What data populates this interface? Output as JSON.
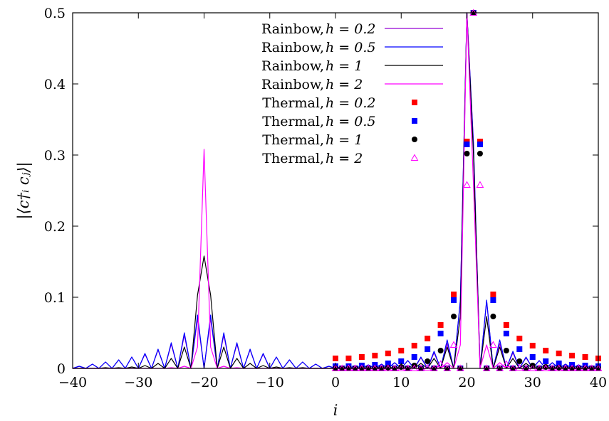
{
  "chart_data": {
    "type": "line",
    "xlabel": "i",
    "ylabel": "|⟨c†ᵢ cⱼ⟩|",
    "xlim": [
      -40,
      40
    ],
    "ylim": [
      0,
      0.5
    ],
    "xticks": [
      -40,
      -30,
      -20,
      -10,
      0,
      10,
      20,
      30,
      40
    ],
    "yticks": [
      0,
      0.1,
      0.2,
      0.3,
      0.4,
      0.5
    ],
    "ytick_labels": [
      "0",
      "0.1",
      "0.2",
      "0.3",
      "0.4",
      "0.5"
    ],
    "grid": false,
    "legend_position": "top-center",
    "x": [
      -40,
      -39,
      -38,
      -37,
      -36,
      -35,
      -34,
      -33,
      -32,
      -31,
      -30,
      -29,
      -28,
      -27,
      -26,
      -25,
      -24,
      -23,
      -22,
      -21,
      -20,
      -19,
      -18,
      -17,
      -16,
      -15,
      -14,
      -13,
      -12,
      -11,
      -10,
      -9,
      -8,
      -7,
      -6,
      -5,
      -4,
      -3,
      -2,
      -1,
      0,
      1,
      2,
      3,
      4,
      5,
      6,
      7,
      8,
      9,
      10,
      11,
      12,
      13,
      14,
      15,
      16,
      17,
      18,
      19,
      20,
      21,
      22,
      23,
      24,
      25,
      26,
      27,
      28,
      29,
      30,
      31,
      32,
      33,
      34,
      35,
      36,
      37,
      38,
      39,
      40
    ],
    "series": [
      {
        "name": "Rainbow, h = 0.2",
        "label_text": "Rainbow, ",
        "label_h": "h = 0.2",
        "kind": "line",
        "color": "#9400d3",
        "values": [
          0,
          0.003,
          0,
          0.006,
          0,
          0.009,
          0,
          0.012,
          0,
          0.016,
          0,
          0.02,
          0,
          0.026,
          0,
          0.034,
          0,
          0.047,
          0,
          0.07,
          0,
          0.07,
          0,
          0.047,
          0,
          0.034,
          0,
          0.026,
          0,
          0.02,
          0,
          0.016,
          0,
          0.012,
          0,
          0.009,
          0,
          0.006,
          0,
          0.003,
          0,
          0.003,
          0,
          0.004,
          0,
          0.005,
          0,
          0.006,
          0,
          0.008,
          0,
          0.011,
          0,
          0.015,
          0,
          0.022,
          0,
          0.035,
          0,
          0.095,
          0.5,
          0.318,
          0,
          0.095,
          0,
          0.035,
          0,
          0.022,
          0,
          0.015,
          0,
          0.011,
          0,
          0.008,
          0,
          0.006,
          0,
          0.005,
          0,
          0.004,
          0
        ]
      },
      {
        "name": "Rainbow, h = 0.5",
        "label_text": "Rainbow, ",
        "label_h": "h = 0.5",
        "kind": "line",
        "color": "#0000ff",
        "values": [
          0,
          0.003,
          0,
          0.006,
          0,
          0.009,
          0,
          0.012,
          0,
          0.016,
          0,
          0.021,
          0,
          0.027,
          0,
          0.036,
          0,
          0.05,
          0,
          0.075,
          0,
          0.075,
          0,
          0.05,
          0,
          0.036,
          0,
          0.027,
          0,
          0.021,
          0,
          0.016,
          0,
          0.012,
          0,
          0.009,
          0,
          0.006,
          0,
          0.003,
          0,
          0.003,
          0,
          0.004,
          0,
          0.005,
          0,
          0.006,
          0,
          0.008,
          0,
          0.011,
          0,
          0.016,
          0,
          0.024,
          0,
          0.04,
          0,
          0.096,
          0.5,
          0.315,
          0,
          0.096,
          0,
          0.04,
          0,
          0.024,
          0,
          0.016,
          0,
          0.011,
          0,
          0.008,
          0,
          0.006,
          0,
          0.005,
          0,
          0.004,
          0
        ]
      },
      {
        "name": "Rainbow, h = 1",
        "label_text": "Rainbow, ",
        "label_h": "h = 1",
        "kind": "line",
        "color": "#000000",
        "values": [
          0,
          0,
          0,
          0,
          0,
          0.001,
          0,
          0.001,
          0,
          0.002,
          0,
          0.004,
          0,
          0.007,
          0,
          0.014,
          0,
          0.03,
          0,
          0.103,
          0.158,
          0.103,
          0,
          0.03,
          0,
          0.014,
          0,
          0.007,
          0,
          0.004,
          0,
          0.002,
          0,
          0.001,
          0,
          0.001,
          0,
          0,
          0,
          0,
          0,
          0.001,
          0,
          0.001,
          0,
          0.001,
          0,
          0.002,
          0,
          0.002,
          0,
          0.004,
          0,
          0.007,
          0,
          0.014,
          0,
          0.03,
          0,
          0.073,
          0.5,
          0.302,
          0,
          0.073,
          0,
          0.03,
          0,
          0.014,
          0,
          0.007,
          0,
          0.004,
          0,
          0.002,
          0,
          0.002,
          0,
          0.001,
          0,
          0.001,
          0
        ]
      },
      {
        "name": "Rainbow, h = 2",
        "label_text": "Rainbow, ",
        "label_h": "h = 2",
        "kind": "line",
        "color": "#ff00ff",
        "values": [
          0,
          0,
          0,
          0,
          0,
          0,
          0,
          0,
          0,
          0,
          0,
          0,
          0,
          0,
          0,
          0.001,
          0,
          0.003,
          0,
          0.03,
          0.308,
          0.03,
          0,
          0.003,
          0,
          0.001,
          0,
          0,
          0,
          0,
          0,
          0,
          0,
          0,
          0,
          0,
          0,
          0,
          0,
          0,
          0,
          0,
          0,
          0,
          0,
          0,
          0,
          0,
          0,
          0,
          0,
          0,
          0,
          0,
          0,
          0.002,
          0,
          0.008,
          0,
          0.033,
          0.5,
          0.258,
          0,
          0.033,
          0,
          0.008,
          0,
          0.002,
          0,
          0,
          0,
          0,
          0,
          0,
          0,
          0,
          0,
          0,
          0,
          0,
          0
        ]
      },
      {
        "name": "Thermal, h = 0.2",
        "label_text": "Thermal, ",
        "label_h": "h = 0.2",
        "kind": "points",
        "marker": "square",
        "color": "#ff0000",
        "x": [
          0,
          1,
          2,
          3,
          4,
          5,
          6,
          7,
          8,
          9,
          10,
          11,
          12,
          13,
          14,
          15,
          16,
          17,
          18,
          19,
          20,
          21,
          22,
          23,
          24,
          25,
          26,
          27,
          28,
          29,
          30,
          31,
          32,
          33,
          34,
          35,
          36,
          37,
          38,
          39,
          40
        ],
        "values": [
          0.014,
          0,
          0.014,
          0,
          0.016,
          0,
          0.018,
          0,
          0.021,
          0,
          0.025,
          0,
          0.032,
          0,
          0.042,
          0,
          0.061,
          0,
          0.104,
          0,
          0.319,
          0.5,
          0.319,
          0,
          0.104,
          0,
          0.061,
          0,
          0.042,
          0,
          0.032,
          0,
          0.025,
          0,
          0.021,
          0,
          0.018,
          0,
          0.016,
          0,
          0.014
        ]
      },
      {
        "name": "Thermal, h = 0.5",
        "label_text": "Thermal, ",
        "label_h": "h = 0.5",
        "kind": "points",
        "marker": "square",
        "color": "#0000ff",
        "x": [
          0,
          1,
          2,
          3,
          4,
          5,
          6,
          7,
          8,
          9,
          10,
          11,
          12,
          13,
          14,
          15,
          16,
          17,
          18,
          19,
          20,
          21,
          22,
          23,
          24,
          25,
          26,
          27,
          28,
          29,
          30,
          31,
          32,
          33,
          34,
          35,
          36,
          37,
          38,
          39,
          40
        ],
        "values": [
          0.003,
          0,
          0.003,
          0,
          0.004,
          0,
          0.005,
          0,
          0.007,
          0,
          0.01,
          0,
          0.016,
          0,
          0.027,
          0,
          0.049,
          0,
          0.096,
          0,
          0.315,
          0.5,
          0.315,
          0,
          0.096,
          0,
          0.049,
          0,
          0.027,
          0,
          0.016,
          0,
          0.01,
          0,
          0.007,
          0,
          0.005,
          0,
          0.004,
          0,
          0.003
        ]
      },
      {
        "name": "Thermal, h = 1",
        "label_text": "Thermal, ",
        "label_h": "h = 1",
        "kind": "points",
        "marker": "circle",
        "color": "#000000",
        "x": [
          0,
          1,
          2,
          3,
          4,
          5,
          6,
          7,
          8,
          9,
          10,
          11,
          12,
          13,
          14,
          15,
          16,
          17,
          18,
          19,
          20,
          21,
          22,
          23,
          24,
          25,
          26,
          27,
          28,
          29,
          30,
          31,
          32,
          33,
          34,
          35,
          36,
          37,
          38,
          39,
          40
        ],
        "values": [
          0,
          0,
          0,
          0,
          0,
          0,
          0,
          0,
          0.001,
          0,
          0.002,
          0,
          0.004,
          0,
          0.01,
          0,
          0.025,
          0,
          0.073,
          0,
          0.302,
          0.5,
          0.302,
          0,
          0.073,
          0,
          0.025,
          0,
          0.01,
          0,
          0.004,
          0,
          0.002,
          0,
          0.001,
          0,
          0,
          0,
          0,
          0,
          0
        ]
      },
      {
        "name": "Thermal, h = 2",
        "label_text": "Thermal, ",
        "label_h": "h = 2",
        "kind": "points",
        "marker": "triangle",
        "color": "#ff00ff",
        "x": [
          0,
          1,
          2,
          3,
          4,
          5,
          6,
          7,
          8,
          9,
          10,
          11,
          12,
          13,
          14,
          15,
          16,
          17,
          18,
          19,
          20,
          21,
          22,
          23,
          24,
          25,
          26,
          27,
          28,
          29,
          30,
          31,
          32,
          33,
          34,
          35,
          36,
          37,
          38,
          39,
          40
        ],
        "values": [
          0,
          0,
          0,
          0,
          0,
          0,
          0,
          0,
          0,
          0,
          0,
          0,
          0,
          0,
          0.001,
          0,
          0.006,
          0,
          0.033,
          0,
          0.258,
          0.5,
          0.258,
          0,
          0.033,
          0,
          0.006,
          0,
          0.001,
          0,
          0,
          0,
          0,
          0,
          0,
          0,
          0,
          0,
          0,
          0,
          0
        ]
      }
    ]
  }
}
